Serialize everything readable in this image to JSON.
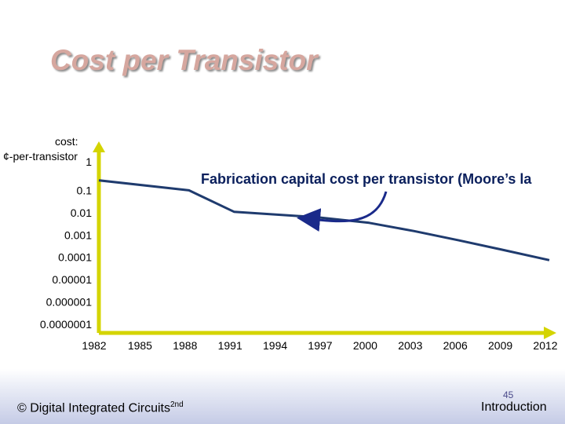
{
  "slide": {
    "title": "Cost per Transistor",
    "footer": {
      "copyright_prefix": "© Digital Integrated Circuits",
      "copyright_superscript": "2nd",
      "slide_number": "45",
      "section": "Introduction"
    }
  },
  "chart_data": {
    "type": "line",
    "ylabel_top": "cost:",
    "ylabel_unit": "¢-per-transistor",
    "yscale": "log",
    "ylim": [
      1e-07,
      1
    ],
    "y_tick_labels": [
      "1",
      "0.1",
      "0.01",
      "0.001",
      "0.0001",
      "0.00001",
      "0.000001",
      "0.0000001"
    ],
    "x_tick_labels": [
      "1982",
      "1985",
      "1988",
      "1991",
      "1994",
      "1997",
      "2000",
      "2003",
      "2006",
      "2009",
      "2012"
    ],
    "xlim": [
      1982,
      2012
    ],
    "series": [
      {
        "values": [
          {
            "x": 1982,
            "y": 0.28
          },
          {
            "x": 1988,
            "y": 0.1
          },
          {
            "x": 1991,
            "y": 0.011
          },
          {
            "x": 1996.5,
            "y": 0.0063
          },
          {
            "x": 2000,
            "y": 0.0035
          },
          {
            "x": 2003,
            "y": 0.0015
          },
          {
            "x": 2006,
            "y": 0.00057
          },
          {
            "x": 2009,
            "y": 0.00021
          },
          {
            "x": 2012,
            "y": 7.5e-05
          }
        ]
      }
    ],
    "annotation": "Fabrication capital cost per transistor (Moore’s la",
    "colors": {
      "axis": "#d4d400",
      "line": "#1f3b6e",
      "arrow": "#1a2a8a",
      "title": "#d6a79f"
    }
  }
}
